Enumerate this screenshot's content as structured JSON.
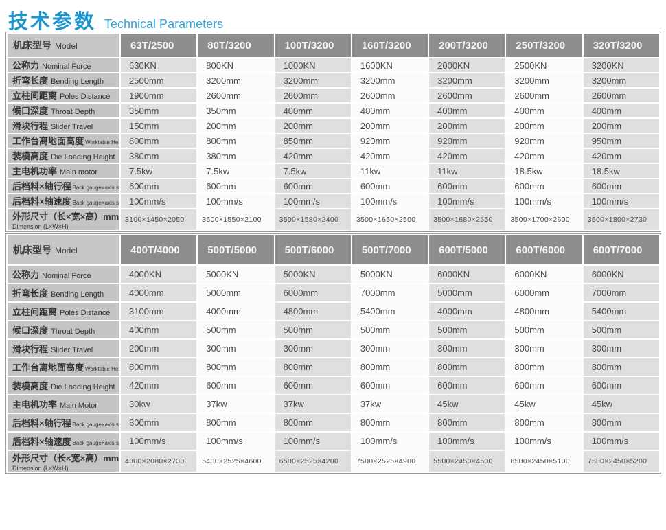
{
  "title": {
    "zh": "技术参数",
    "en": "Technical Parameters"
  },
  "colors": {
    "title_blue": "#1e95cf",
    "subtitle_blue": "#38a5d8",
    "header_gray": "#8d8d8d",
    "label_gray": "#c4c4c4",
    "shade_gray": "#dfdfdf",
    "shade_white": "#fbfbfb"
  },
  "tables": [
    {
      "model_label": {
        "zh": "机床型号",
        "en": "Model"
      },
      "models": [
        "63T/2500",
        "80T/3200",
        "100T/3200",
        "160T/3200",
        "200T/3200",
        "250T/3200",
        "320T/3200"
      ],
      "rows": [
        {
          "zh": "公称力",
          "en": "Nominal Force",
          "values": [
            "630KN",
            "800KN",
            "1000KN",
            "1600KN",
            "2000KN",
            "2500KN",
            "3200KN"
          ]
        },
        {
          "zh": "折弯长度",
          "en": "Bending Length",
          "values": [
            "2500mm",
            "3200mm",
            "3200mm",
            "3200mm",
            "3200mm",
            "3200mm",
            "3200mm"
          ]
        },
        {
          "zh": "立柱间距离",
          "en": "Poles Distance",
          "values": [
            "1900mm",
            "2600mm",
            "2600mm",
            "2600mm",
            "2600mm",
            "2600mm",
            "2600mm"
          ]
        },
        {
          "zh": "候口深度",
          "en": "Throat Depth",
          "values": [
            "350mm",
            "350mm",
            "400mm",
            "400mm",
            "400mm",
            "400mm",
            "400mm"
          ]
        },
        {
          "zh": "滑块行程",
          "en": "Slider Travel",
          "values": [
            "150mm",
            "200mm",
            "200mm",
            "200mm",
            "200mm",
            "200mm",
            "200mm"
          ]
        },
        {
          "zh": "工作台离地面高度",
          "en": "Worktable Height",
          "en_small": true,
          "values": [
            "800mm",
            "800mm",
            "850mm",
            "920mm",
            "920mm",
            "920mm",
            "950mm"
          ]
        },
        {
          "zh": "装模高度",
          "en": "Die Loading Height",
          "values": [
            "380mm",
            "380mm",
            "420mm",
            "420mm",
            "420mm",
            "420mm",
            "420mm"
          ]
        },
        {
          "zh": "主电机功率",
          "en": "Main motor",
          "values": [
            "7.5kw",
            "7.5kw",
            "7.5kw",
            "11kw",
            "11kw",
            "18.5kw",
            "18.5kw"
          ]
        },
        {
          "zh": "后档料×轴行程",
          "en": "Back gauge×axis stroke",
          "en_small": true,
          "values": [
            "600mm",
            "600mm",
            "600mm",
            "600mm",
            "600mm",
            "600mm",
            "600mm"
          ]
        },
        {
          "zh": "后档料×轴速度",
          "en": "Back gauge×axis speed",
          "en_small": true,
          "values": [
            "100mm/s",
            "100mm/s",
            "100mm/s",
            "100mm/s",
            "100mm/s",
            "100mm/s",
            "100mm/s"
          ]
        },
        {
          "zh": "外形尺寸（长×宽×高）mm",
          "en": "Dimension (L×W×H)",
          "dim": true,
          "values": [
            "3100×1450×2050",
            "3500×1550×2100",
            "3500×1580×2400",
            "3500×1650×2500",
            "3500×1680×2550",
            "3500×1700×2600",
            "3500×1800×2730"
          ]
        }
      ]
    },
    {
      "model_label": {
        "zh": "机床型号",
        "en": "Model"
      },
      "models": [
        "400T/4000",
        "500T/5000",
        "500T/6000",
        "500T/7000",
        "600T/5000",
        "600T/6000",
        "600T/7000"
      ],
      "rows": [
        {
          "zh": "公称力",
          "en": "Nominal Force",
          "values": [
            "4000KN",
            "5000KN",
            "5000KN",
            "5000KN",
            "6000KN",
            "6000KN",
            "6000KN"
          ]
        },
        {
          "zh": "折弯长度",
          "en": "Bending Length",
          "values": [
            "4000mm",
            "5000mm",
            "6000mm",
            "7000mm",
            "5000mm",
            "6000mm",
            "7000mm"
          ]
        },
        {
          "zh": "立柱间距离",
          "en": "Poles Distance",
          "values": [
            "3100mm",
            "4000mm",
            "4800mm",
            "5400mm",
            "4000mm",
            "4800mm",
            "5400mm"
          ]
        },
        {
          "zh": "候口深度",
          "en": "Throat Depth",
          "values": [
            "400mm",
            "500mm",
            "500mm",
            "500mm",
            "500mm",
            "500mm",
            "500mm"
          ]
        },
        {
          "zh": "滑块行程",
          "en": "Slider Travel",
          "values": [
            "200mm",
            "300mm",
            "300mm",
            "300mm",
            "300mm",
            "300mm",
            "300mm"
          ]
        },
        {
          "zh": "工作台离地面高度",
          "en": "Worktable Heig",
          "en_small": true,
          "values": [
            "800mm",
            "800mm",
            "800mm",
            "800mm",
            "800mm",
            "800mm",
            "800mm"
          ]
        },
        {
          "zh": "装模高度",
          "en": "Die Loading Height",
          "values": [
            "420mm",
            "600mm",
            "600mm",
            "600mm",
            "600mm",
            "600mm",
            "600mm"
          ]
        },
        {
          "zh": "主电机功率",
          "en": "Main Motor",
          "values": [
            "30kw",
            "37kw",
            "37kw",
            "37kw",
            "45kw",
            "45kw",
            "45kw"
          ]
        },
        {
          "zh": "后档料×轴行程",
          "en": "Back gauge×axis stroke",
          "en_small": true,
          "values": [
            "800mm",
            "800mm",
            "800mm",
            "800mm",
            "800mm",
            "800mm",
            "800mm"
          ]
        },
        {
          "zh": "后档料×轴速度",
          "en": "Back gauge×axis speed",
          "en_small": true,
          "values": [
            "100mm/s",
            "100mm/s",
            "100mm/s",
            "100mm/s",
            "100mm/s",
            "100mm/s",
            "100mm/s"
          ]
        },
        {
          "zh": "外形尺寸（长×宽×高）mm",
          "en": "Dimension (L×W×H)",
          "dim": true,
          "values": [
            "4300×2080×2730",
            "5400×2525×4600",
            "6500×2525×4200",
            "7500×2525×4900",
            "5500×2450×4500",
            "6500×2450×5100",
            "7500×2450×5200"
          ]
        }
      ]
    }
  ]
}
